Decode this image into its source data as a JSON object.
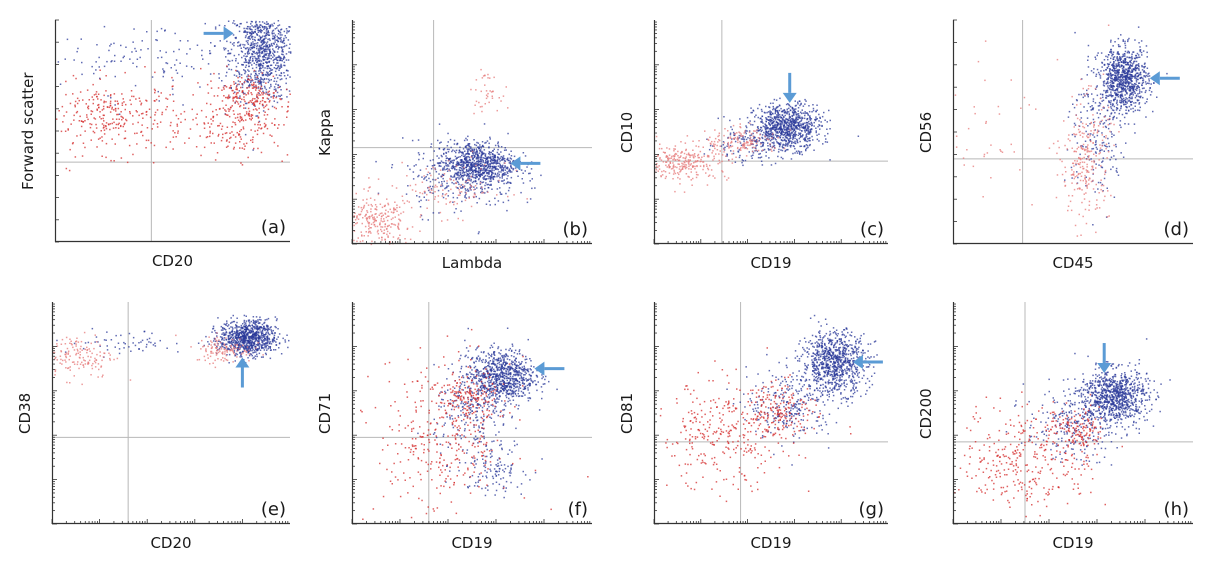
{
  "chart_data": [
    {
      "id": "a",
      "type": "scatter",
      "panel_label": "(a)",
      "xlabel": "CD20",
      "ylabel": "Forward scatter",
      "xlim": [
        0,
        1
      ],
      "ylim": [
        0,
        1
      ],
      "log_ticks": false,
      "quadrant": {
        "x": 0.41,
        "y": 0.36
      },
      "grid": true,
      "series": [
        {
          "name": "",
          "color": "#2b3a9a",
          "clusters": [
            {
              "cx": 0.88,
              "cy": 0.86,
              "sx": 0.07,
              "sy": 0.11,
              "n": 900
            },
            {
              "cx": 0.4,
              "cy": 0.83,
              "sx": 0.28,
              "sy": 0.08,
              "n": 140
            }
          ]
        },
        {
          "name": "",
          "color": "#d42b2b",
          "clusters": [
            {
              "cx": 0.25,
              "cy": 0.56,
              "sx": 0.15,
              "sy": 0.08,
              "n": 300
            },
            {
              "cx": 0.78,
              "cy": 0.56,
              "sx": 0.11,
              "sy": 0.09,
              "n": 260
            },
            {
              "cx": 0.82,
              "cy": 0.67,
              "sx": 0.06,
              "sy": 0.05,
              "n": 120
            }
          ]
        }
      ],
      "arrow": {
        "direction": "right",
        "tip": [
          0.76,
          0.94
        ]
      }
    },
    {
      "id": "b",
      "type": "scatter",
      "panel_label": "(b)",
      "xlabel": "Lambda",
      "ylabel": "Kappa",
      "xlim": [
        0,
        1
      ],
      "ylim": [
        0,
        1
      ],
      "log_ticks": true,
      "quadrant": {
        "x": 0.34,
        "y": 0.43
      },
      "grid": true,
      "series": [
        {
          "name": "",
          "color": "#2b3a9a",
          "clusters": [
            {
              "cx": 0.52,
              "cy": 0.36,
              "sx": 0.08,
              "sy": 0.05,
              "n": 800
            },
            {
              "cx": 0.45,
              "cy": 0.3,
              "sx": 0.12,
              "sy": 0.08,
              "n": 250
            }
          ]
        },
        {
          "name": "",
          "color": "#e57a7a",
          "clusters": [
            {
              "cx": 0.1,
              "cy": 0.1,
              "sx": 0.08,
              "sy": 0.06,
              "n": 250
            },
            {
              "cx": 0.55,
              "cy": 0.68,
              "sx": 0.03,
              "sy": 0.04,
              "n": 40
            },
            {
              "cx": 0.4,
              "cy": 0.25,
              "sx": 0.12,
              "sy": 0.06,
              "n": 120
            }
          ]
        }
      ],
      "arrow": {
        "direction": "left",
        "tip": [
          0.66,
          0.36
        ]
      }
    },
    {
      "id": "c",
      "type": "scatter",
      "panel_label": "(c)",
      "xlabel": "CD19",
      "ylabel": "CD10",
      "xlim": [
        0,
        1
      ],
      "ylim": [
        0,
        1
      ],
      "log_ticks": true,
      "quadrant": {
        "x": 0.29,
        "y": 0.37
      },
      "grid": true,
      "series": [
        {
          "name": "",
          "color": "#2b3a9a",
          "clusters": [
            {
              "cx": 0.57,
              "cy": 0.53,
              "sx": 0.07,
              "sy": 0.05,
              "n": 800
            },
            {
              "cx": 0.42,
              "cy": 0.45,
              "sx": 0.1,
              "sy": 0.04,
              "n": 200
            }
          ]
        },
        {
          "name": "",
          "color": "#e57a7a",
          "clusters": [
            {
              "cx": 0.12,
              "cy": 0.37,
              "sx": 0.1,
              "sy": 0.04,
              "n": 280
            },
            {
              "cx": 0.38,
              "cy": 0.46,
              "sx": 0.08,
              "sy": 0.03,
              "n": 140
            }
          ]
        }
      ],
      "arrow": {
        "direction": "down",
        "tip": [
          0.58,
          0.63
        ]
      }
    },
    {
      "id": "d",
      "type": "scatter",
      "panel_label": "(d)",
      "xlabel": "CD45",
      "ylabel": "CD56",
      "xlim": [
        0,
        1
      ],
      "ylim": [
        0,
        1
      ],
      "log_ticks": false,
      "quadrant": {
        "x": 0.29,
        "y": 0.38
      },
      "grid": true,
      "series": [
        {
          "name": "",
          "color": "#2b3a9a",
          "clusters": [
            {
              "cx": 0.71,
              "cy": 0.74,
              "sx": 0.05,
              "sy": 0.07,
              "n": 850
            },
            {
              "cx": 0.6,
              "cy": 0.5,
              "sx": 0.06,
              "sy": 0.15,
              "n": 200
            }
          ]
        },
        {
          "name": "",
          "color": "#e57a7a",
          "clusters": [
            {
              "cx": 0.55,
              "cy": 0.38,
              "sx": 0.05,
              "sy": 0.14,
              "n": 260
            },
            {
              "cx": 0.15,
              "cy": 0.55,
              "sx": 0.12,
              "sy": 0.15,
              "n": 40
            }
          ]
        }
      ],
      "arrow": {
        "direction": "left",
        "tip": [
          0.82,
          0.74
        ]
      }
    },
    {
      "id": "e",
      "type": "scatter",
      "panel_label": "(e)",
      "xlabel": "CD20",
      "ylabel": "CD38",
      "xlim": [
        0,
        1
      ],
      "ylim": [
        0,
        1
      ],
      "log_ticks": true,
      "quadrant": {
        "x": 0.32,
        "y": 0.39
      },
      "grid": true,
      "series": [
        {
          "name": "",
          "color": "#2b3a9a",
          "clusters": [
            {
              "cx": 0.82,
              "cy": 0.84,
              "sx": 0.06,
              "sy": 0.04,
              "n": 850
            },
            {
              "cx": 0.3,
              "cy": 0.82,
              "sx": 0.15,
              "sy": 0.03,
              "n": 60
            }
          ]
        },
        {
          "name": "",
          "color": "#e57a7a",
          "clusters": [
            {
              "cx": 0.1,
              "cy": 0.76,
              "sx": 0.08,
              "sy": 0.05,
              "n": 160
            },
            {
              "cx": 0.72,
              "cy": 0.79,
              "sx": 0.06,
              "sy": 0.03,
              "n": 120
            }
          ]
        }
      ],
      "arrow": {
        "direction": "up",
        "tip": [
          0.8,
          0.75
        ]
      }
    },
    {
      "id": "f",
      "type": "scatter",
      "panel_label": "(f)",
      "xlabel": "CD19",
      "ylabel": "CD71",
      "xlim": [
        0,
        1
      ],
      "ylim": [
        0,
        1
      ],
      "log_ticks": true,
      "quadrant": {
        "x": 0.32,
        "y": 0.39
      },
      "grid": true,
      "series": [
        {
          "name": "",
          "color": "#2b3a9a",
          "clusters": [
            {
              "cx": 0.62,
              "cy": 0.67,
              "sx": 0.07,
              "sy": 0.06,
              "n": 800
            },
            {
              "cx": 0.5,
              "cy": 0.5,
              "sx": 0.08,
              "sy": 0.1,
              "n": 220
            },
            {
              "cx": 0.58,
              "cy": 0.26,
              "sx": 0.07,
              "sy": 0.06,
              "n": 120
            }
          ]
        },
        {
          "name": "",
          "color": "#d42b2b",
          "clusters": [
            {
              "cx": 0.38,
              "cy": 0.38,
              "sx": 0.14,
              "sy": 0.18,
              "n": 350
            },
            {
              "cx": 0.48,
              "cy": 0.57,
              "sx": 0.06,
              "sy": 0.05,
              "n": 140
            }
          ]
        }
      ],
      "arrow": {
        "direction": "left",
        "tip": [
          0.76,
          0.7
        ]
      }
    },
    {
      "id": "g",
      "type": "scatter",
      "panel_label": "(g)",
      "xlabel": "CD19",
      "ylabel": "CD81",
      "xlim": [
        0,
        1
      ],
      "ylim": [
        0,
        1
      ],
      "log_ticks": true,
      "quadrant": {
        "x": 0.37,
        "y": 0.37
      },
      "grid": true,
      "series": [
        {
          "name": "",
          "color": "#2b3a9a",
          "clusters": [
            {
              "cx": 0.77,
              "cy": 0.73,
              "sx": 0.07,
              "sy": 0.07,
              "n": 850
            },
            {
              "cx": 0.58,
              "cy": 0.54,
              "sx": 0.09,
              "sy": 0.08,
              "n": 250
            }
          ]
        },
        {
          "name": "",
          "color": "#d42b2b",
          "clusters": [
            {
              "cx": 0.3,
              "cy": 0.4,
              "sx": 0.15,
              "sy": 0.12,
              "n": 330
            },
            {
              "cx": 0.55,
              "cy": 0.52,
              "sx": 0.07,
              "sy": 0.06,
              "n": 150
            }
          ]
        }
      ],
      "arrow": {
        "direction": "left",
        "tip": [
          0.85,
          0.73
        ]
      }
    },
    {
      "id": "h",
      "type": "scatter",
      "panel_label": "(h)",
      "xlabel": "CD19",
      "ylabel": "CD200",
      "xlim": [
        0,
        1
      ],
      "ylim": [
        0,
        1
      ],
      "log_ticks": true,
      "quadrant": {
        "x": 0.3,
        "y": 0.37
      },
      "grid": true,
      "series": [
        {
          "name": "",
          "color": "#2b3a9a",
          "clusters": [
            {
              "cx": 0.67,
              "cy": 0.58,
              "sx": 0.07,
              "sy": 0.06,
              "n": 850
            },
            {
              "cx": 0.5,
              "cy": 0.45,
              "sx": 0.1,
              "sy": 0.08,
              "n": 250
            }
          ]
        },
        {
          "name": "",
          "color": "#d42b2b",
          "clusters": [
            {
              "cx": 0.3,
              "cy": 0.3,
              "sx": 0.14,
              "sy": 0.12,
              "n": 330
            },
            {
              "cx": 0.52,
              "cy": 0.42,
              "sx": 0.06,
              "sy": 0.05,
              "n": 130
            }
          ]
        }
      ],
      "arrow": {
        "direction": "down",
        "tip": [
          0.63,
          0.68
        ]
      }
    }
  ],
  "colors": {
    "arrow": "#5b9bd5",
    "grid": "#b8b8b8",
    "axis": "#333333"
  }
}
